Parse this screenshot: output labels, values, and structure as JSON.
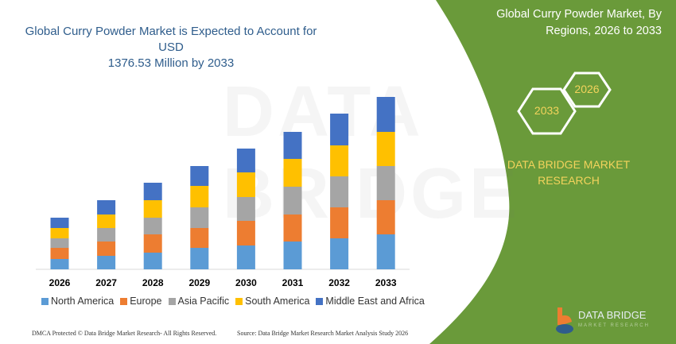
{
  "header": {
    "title_line1": "Global Curry Powder Market is Expected to Account for USD",
    "title_line2": "1376.53 Million by 2033"
  },
  "side_panel": {
    "title_line1": "Global Curry Powder Market, By",
    "title_line2": "Regions, 2026 to 2033",
    "hex_start": "2026",
    "hex_end": "2033",
    "brand_line1": "DATA BRIDGE MARKET",
    "brand_line2": "RESEARCH",
    "panel_color": "#6a9a3a",
    "brand_color": "#f3d35c"
  },
  "watermark": "DATA BRIDGE",
  "logo": {
    "text": "DATA BRIDGE",
    "subtext": "MARKET RESEARCH"
  },
  "footer": {
    "left": "DMCA Protected © Data Bridge Market Research- All Rights Reserved.",
    "right": "Source: Data Bridge Market Research Market Analysis Study 2026"
  },
  "chart_data": {
    "type": "bar",
    "stacked": true,
    "categories": [
      "2026",
      "2027",
      "2028",
      "2029",
      "2030",
      "2031",
      "2032",
      "2033"
    ],
    "y_axis_shown": false,
    "grid": false,
    "legend_position": "bottom",
    "series": [
      {
        "name": "North America",
        "color": "#5b9bd5",
        "values": [
          13,
          17,
          21,
          27,
          30,
          35,
          39,
          44
        ]
      },
      {
        "name": "Europe",
        "color": "#ed7d31",
        "values": [
          14,
          18,
          23,
          25,
          31,
          34,
          39,
          43
        ]
      },
      {
        "name": "Asia Pacific",
        "color": "#a5a5a5",
        "values": [
          12,
          17,
          21,
          26,
          30,
          35,
          39,
          43
        ]
      },
      {
        "name": "South America",
        "color": "#ffc000",
        "values": [
          13,
          17,
          22,
          27,
          31,
          35,
          39,
          43
        ]
      },
      {
        "name": "Middle East and Africa",
        "color": "#4472c4",
        "values": [
          13,
          18,
          22,
          25,
          30,
          34,
          40,
          44
        ]
      }
    ]
  }
}
